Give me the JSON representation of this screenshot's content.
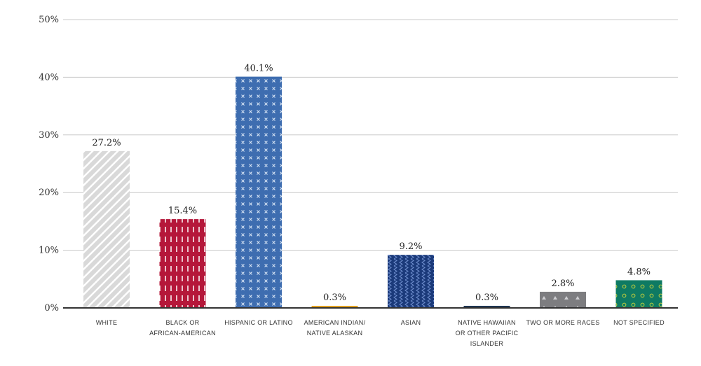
{
  "chart_data": {
    "type": "bar",
    "title": "",
    "xlabel": "",
    "ylabel": "",
    "ylim": [
      0,
      50
    ],
    "yticks": [
      0,
      10,
      20,
      30,
      40,
      50
    ],
    "ytick_labels": [
      "0%",
      "10%",
      "20%",
      "30%",
      "40%",
      "50%"
    ],
    "grid": true,
    "categories": [
      [
        "WHITE"
      ],
      [
        "BLACK OR",
        "AFRICAN-AMERICAN"
      ],
      [
        "HISPANIC OR LATINO"
      ],
      [
        "AMERICAN INDIAN/",
        "NATIVE ALASKAN"
      ],
      [
        "ASIAN"
      ],
      [
        "NATIVE HAWAIIAN",
        "OR OTHER PACIFIC",
        "ISLANDER"
      ],
      [
        "TWO OR MORE RACES"
      ],
      [
        "NOT SPECIFIED"
      ]
    ],
    "values": [
      27.2,
      15.4,
      40.1,
      0.3,
      9.2,
      0.3,
      2.8,
      4.8
    ],
    "value_labels": [
      "27.2%",
      "15.4%",
      "40.1%",
      "0.3%",
      "9.2%",
      "0.3%",
      "2.8%",
      "4.8%"
    ],
    "colors": [
      "#d9d9d9",
      "#b5173a",
      "#3e6db0",
      "#e0a020",
      "#1b3a7a",
      "#1e3450",
      "#7d7d80",
      "#0e7a63"
    ],
    "patterns": [
      "diagonal-stripes",
      "vertical-dashes",
      "crosses",
      "solid",
      "waves",
      "solid",
      "triangles",
      "circles"
    ]
  }
}
